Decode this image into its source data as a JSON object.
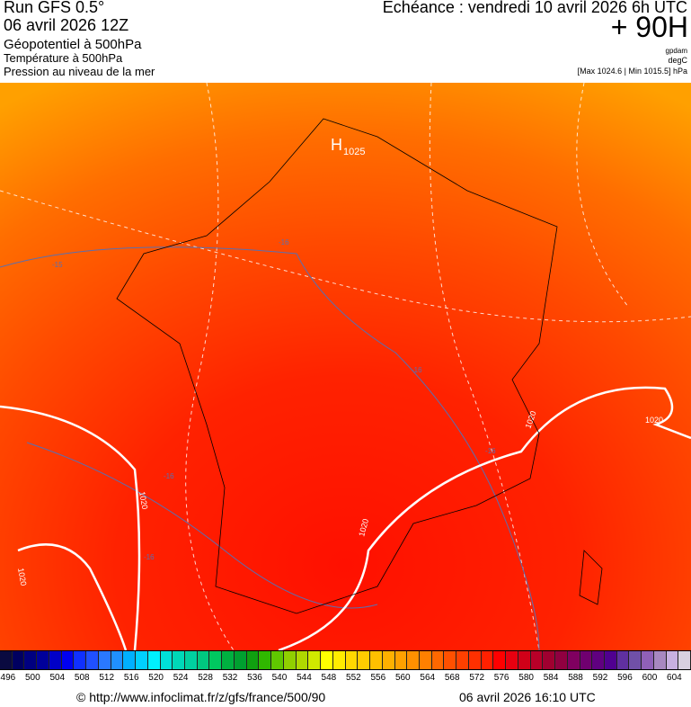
{
  "header": {
    "run": "Run GFS 0.5°",
    "run_date": "06 avril 2026 12Z",
    "field1": "Géopotentiel à 500hPa",
    "field2": "Température à 500hPa",
    "field3": "Pression au niveau de la mer",
    "echeance": "Echéance : vendredi 10 avril 2026 6h UTC",
    "lead": "+ 90H",
    "unit1": "gpdam",
    "unit2": "degC",
    "maxmin": "[Max 1024.6 | Min 1015.5] hPa"
  },
  "map": {
    "high_label": "H",
    "high_value": "1025",
    "isobar_labels": [
      "1020",
      "1020",
      "1020",
      "1020",
      "1020"
    ],
    "temp_labels": [
      "-15",
      "-16",
      "-16",
      "-16",
      "-16",
      "-16"
    ],
    "colors": {
      "top": "#ff9a00",
      "mid": "#ff5a00",
      "center": "#ff1a00",
      "isobar": "#ffffff",
      "border": "#000000"
    }
  },
  "colorbar": {
    "labels": [
      "496",
      "500",
      "504",
      "508",
      "512",
      "516",
      "520",
      "524",
      "528",
      "532",
      "536",
      "540",
      "544",
      "548",
      "552",
      "556",
      "560",
      "564",
      "568",
      "572",
      "576",
      "580",
      "584",
      "588",
      "592",
      "596",
      "600",
      "604"
    ],
    "colors": [
      "#0a0a40",
      "#000060",
      "#000080",
      "#00009a",
      "#0000c8",
      "#0000f0",
      "#1030ff",
      "#2050ff",
      "#2a78ff",
      "#2090ff",
      "#00b0ff",
      "#00d0ff",
      "#00f0ff",
      "#00e0d8",
      "#00d8b8",
      "#00d0a0",
      "#00c880",
      "#00c860",
      "#00b040",
      "#00a030",
      "#10a010",
      "#30b800",
      "#60c800",
      "#90d000",
      "#b0d800",
      "#d0e800",
      "#ffff00",
      "#ffec00",
      "#ffd800",
      "#ffcc00",
      "#ffc000",
      "#ffb000",
      "#ffa000",
      "#ff9000",
      "#ff8000",
      "#ff6800",
      "#ff5000",
      "#ff4000",
      "#ff3000",
      "#ff2000",
      "#ff0000",
      "#e80010",
      "#d00018",
      "#b80028",
      "#a00030",
      "#900040",
      "#800060",
      "#700070",
      "#600080",
      "#500090",
      "#6030a0",
      "#7050a8",
      "#9060b8",
      "#a888c0",
      "#c8b0e0",
      "#d8d0e0"
    ]
  },
  "footer": {
    "url": "© http://www.infoclimat.fr/z/gfs/france/500/90",
    "generated": "06 avril 2026 16:10 UTC"
  }
}
